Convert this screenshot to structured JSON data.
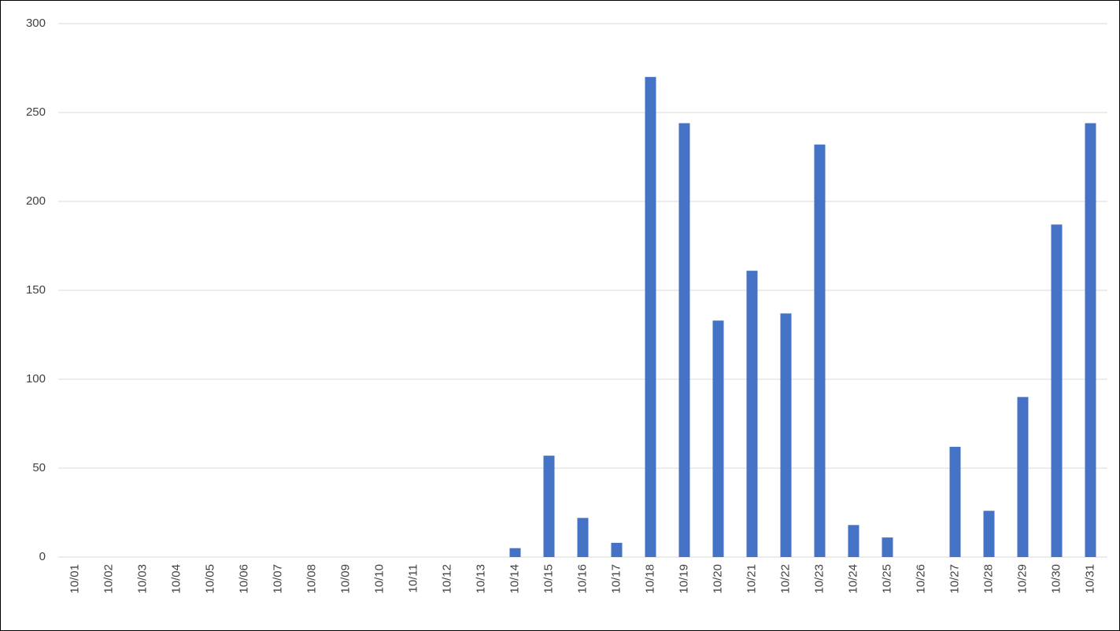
{
  "chart_data": {
    "type": "bar",
    "categories": [
      "10/01",
      "10/02",
      "10/03",
      "10/04",
      "10/05",
      "10/06",
      "10/07",
      "10/08",
      "10/09",
      "10/10",
      "10/11",
      "10/12",
      "10/13",
      "10/14",
      "10/15",
      "10/16",
      "10/17",
      "10/18",
      "10/19",
      "10/20",
      "10/21",
      "10/22",
      "10/23",
      "10/24",
      "10/25",
      "10/26",
      "10/27",
      "10/28",
      "10/29",
      "10/30",
      "10/31"
    ],
    "values": [
      0,
      0,
      0,
      0,
      0,
      0,
      0,
      0,
      0,
      0,
      0,
      0,
      0,
      5,
      57,
      22,
      8,
      270,
      244,
      133,
      161,
      137,
      232,
      18,
      11,
      0,
      62,
      26,
      90,
      187,
      244
    ],
    "color": "#4472c4",
    "ylim": [
      0,
      300
    ],
    "yticks": [
      0,
      50,
      100,
      150,
      200,
      250,
      300
    ],
    "grid": true
  }
}
